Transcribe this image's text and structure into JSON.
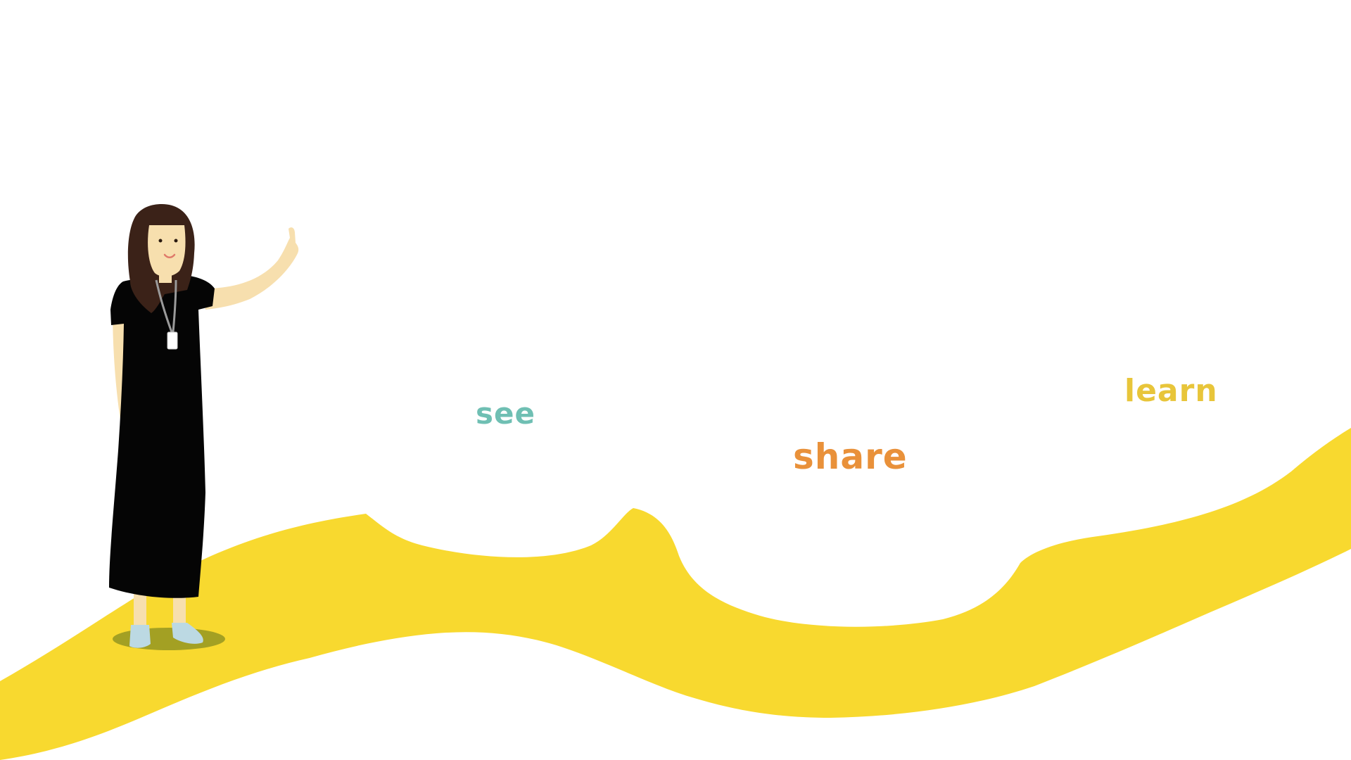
{
  "words": {
    "see": "see",
    "share": "share",
    "learn": "learn"
  },
  "colors": {
    "background": "#ffffff",
    "path": "#f8d92f",
    "see": "#6fbfb3",
    "share": "#e9913a",
    "learn": "#e8c53a",
    "dress": "#050505",
    "hair": "#3b2218",
    "skin": "#f7dfae",
    "shoes": "#bcd9e3",
    "shadow": "#a3a023"
  },
  "illustration": {
    "path": "yellow-winding-path",
    "figure": "woman-pointing-up"
  }
}
